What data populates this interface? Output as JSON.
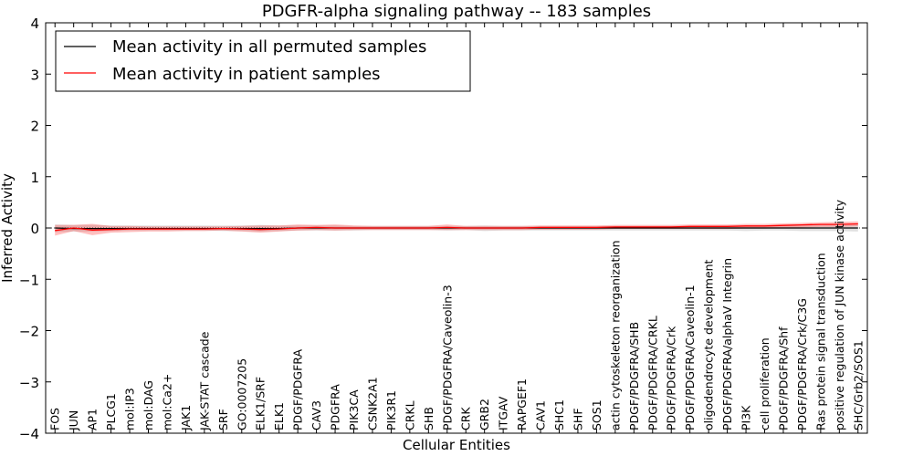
{
  "chart_data": {
    "type": "line",
    "title": "PDGFR-alpha signaling pathway -- 183 samples",
    "xlabel": "Cellular Entities",
    "ylabel": "Inferred Activity",
    "ylim": [
      -4,
      4
    ],
    "yticks": [
      4,
      3,
      2,
      1,
      0,
      -1,
      -2,
      -3,
      -4
    ],
    "ytick_labels": [
      "4",
      "3",
      "2",
      "1",
      "0",
      "−1",
      "−2",
      "−3",
      "−4"
    ],
    "legend_position": "top-left",
    "categories": [
      "FOS",
      "JUN",
      "AP1",
      "PLCG1",
      "mol:IP3",
      "mol:DAG",
      "mol:Ca2+",
      "JAK1",
      "JAK-STAT cascade",
      "SRF",
      "GO:0007205",
      "ELK1/SRF",
      "ELK1",
      "PDGF/PDGFRA",
      "CAV3",
      "PDGFRA",
      "PIK3CA",
      "CSNK2A1",
      "PIK3R1",
      "CRKL",
      "SHB",
      "PDGF/PDGFRA/Caveolin-3",
      "CRK",
      "GRB2",
      "ITGAV",
      "RAPGEF1",
      "CAV1",
      "SHC1",
      "SHF",
      "SOS1",
      "actin cytoskeleton reorganization",
      "PDGF/PDGFRA/SHB",
      "PDGF/PDGFRA/CRKL",
      "PDGF/PDGFRA/Crk",
      "PDGF/PDGFRA/Caveolin-1",
      "oligodendrocyte development",
      "PDGF/PDGFRA/alphaV Integrin",
      "PI3K",
      "cell proliferation",
      "PDGF/PDGFRA/Shf",
      "PDGF/PDGFRA/Crk/C3G",
      "Ras protein signal transduction",
      "positive regulation of JUN kinase activity",
      "SHC/Grb2/SOS1"
    ],
    "series": [
      {
        "name": "Mean activity in all permuted samples",
        "color": "#000000",
        "values": [
          0.0,
          -0.01,
          -0.01,
          -0.01,
          -0.01,
          -0.01,
          -0.01,
          -0.01,
          -0.01,
          -0.01,
          -0.01,
          -0.01,
          -0.01,
          0.0,
          0.0,
          0.0,
          0.0,
          0.0,
          0.0,
          0.0,
          0.0,
          0.0,
          0.0,
          0.0,
          0.0,
          0.0,
          0.0,
          0.0,
          0.0,
          0.0,
          0.0,
          0.0,
          0.0,
          0.0,
          0.0,
          0.0,
          0.0,
          0.0,
          0.0,
          0.0,
          0.0,
          0.0,
          0.0,
          0.0
        ],
        "band_lower": [
          -0.08,
          -0.07,
          -0.07,
          -0.06,
          -0.05,
          -0.05,
          -0.05,
          -0.05,
          -0.05,
          -0.06,
          -0.06,
          -0.07,
          -0.06,
          -0.05,
          -0.05,
          -0.05,
          -0.05,
          -0.04,
          -0.04,
          -0.04,
          -0.04,
          -0.05,
          -0.04,
          -0.06,
          -0.05,
          -0.05,
          -0.05,
          -0.05,
          -0.05,
          -0.05,
          -0.05,
          -0.05,
          -0.05,
          -0.05,
          -0.05,
          -0.05,
          -0.05,
          -0.06,
          -0.05,
          -0.05,
          -0.06,
          -0.06,
          -0.06,
          -0.07
        ],
        "band_upper": [
          0.07,
          0.06,
          0.06,
          0.05,
          0.05,
          0.05,
          0.05,
          0.05,
          0.05,
          0.05,
          0.05,
          0.06,
          0.05,
          0.05,
          0.05,
          0.05,
          0.04,
          0.04,
          0.04,
          0.04,
          0.04,
          0.04,
          0.04,
          0.05,
          0.04,
          0.04,
          0.04,
          0.04,
          0.04,
          0.04,
          0.04,
          0.04,
          0.04,
          0.04,
          0.04,
          0.04,
          0.04,
          0.05,
          0.04,
          0.04,
          0.05,
          0.05,
          0.05,
          0.06
        ]
      },
      {
        "name": "Mean activity in patient samples",
        "color": "#ff0000",
        "values": [
          -0.05,
          0.0,
          -0.04,
          -0.03,
          -0.02,
          -0.02,
          -0.02,
          -0.02,
          -0.02,
          -0.01,
          -0.02,
          -0.03,
          -0.02,
          0.0,
          0.01,
          0.0,
          0.0,
          0.0,
          0.0,
          0.0,
          0.0,
          0.01,
          0.0,
          0.0,
          0.0,
          0.0,
          0.01,
          0.01,
          0.01,
          0.01,
          0.02,
          0.02,
          0.02,
          0.02,
          0.03,
          0.03,
          0.03,
          0.04,
          0.04,
          0.05,
          0.06,
          0.07,
          0.07,
          0.08
        ],
        "band_lower": [
          -0.15,
          -0.06,
          -0.14,
          -0.09,
          -0.08,
          -0.07,
          -0.07,
          -0.06,
          -0.06,
          -0.05,
          -0.07,
          -0.09,
          -0.07,
          -0.05,
          -0.04,
          -0.05,
          -0.04,
          -0.04,
          -0.04,
          -0.04,
          -0.04,
          -0.04,
          -0.04,
          -0.04,
          -0.04,
          -0.04,
          -0.03,
          -0.03,
          -0.03,
          -0.03,
          -0.02,
          -0.02,
          -0.02,
          -0.02,
          -0.02,
          -0.02,
          -0.02,
          -0.01,
          -0.01,
          0.0,
          0.01,
          0.02,
          0.02,
          0.03
        ],
        "band_upper": [
          0.06,
          0.06,
          0.08,
          0.04,
          0.04,
          0.03,
          0.03,
          0.03,
          0.03,
          0.03,
          0.04,
          0.05,
          0.05,
          0.07,
          0.06,
          0.07,
          0.05,
          0.04,
          0.04,
          0.04,
          0.04,
          0.07,
          0.04,
          0.04,
          0.04,
          0.04,
          0.05,
          0.05,
          0.05,
          0.05,
          0.06,
          0.06,
          0.06,
          0.06,
          0.07,
          0.07,
          0.07,
          0.08,
          0.08,
          0.09,
          0.1,
          0.11,
          0.12,
          0.13
        ]
      }
    ]
  }
}
